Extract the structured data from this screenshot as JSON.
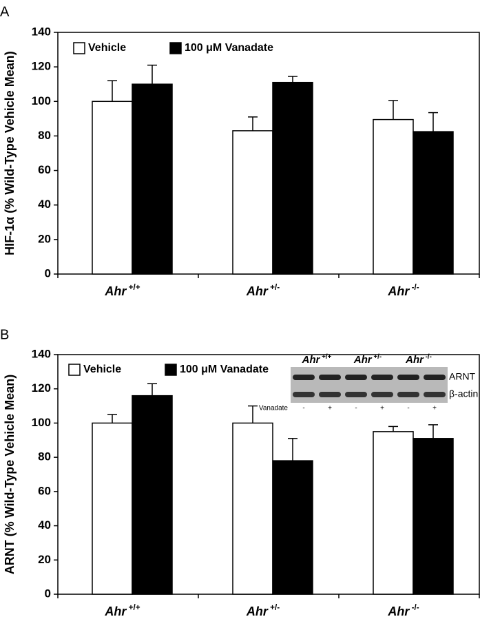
{
  "chart_data": [
    {
      "type": "bar",
      "panel": "A",
      "ylabel": "HIF-1α (% Wild-Type Vehicle Mean)",
      "categories": [
        "Ahr +/+",
        "Ahr +/-",
        "Ahr -/-"
      ],
      "series": [
        {
          "name": "Vehicle",
          "color": "#ffffff",
          "values": [
            100,
            83,
            89.5
          ],
          "errors": [
            12,
            8,
            11
          ]
        },
        {
          "name": "100 μM Vanadate",
          "color": "#000000",
          "values": [
            110,
            111,
            82.5
          ],
          "errors": [
            11,
            3.5,
            11
          ]
        }
      ],
      "ylim": [
        0,
        140
      ],
      "yticks": [
        0,
        20,
        40,
        60,
        80,
        100,
        120,
        140
      ],
      "legend": "upper left"
    },
    {
      "type": "bar",
      "panel": "B",
      "ylabel": "ARNT (% Wild-Type Vehicle Mean)",
      "categories": [
        "Ahr +/+",
        "Ahr +/-",
        "Ahr -/-"
      ],
      "series": [
        {
          "name": "Vehicle",
          "color": "#ffffff",
          "values": [
            100,
            100,
            95
          ],
          "errors": [
            5,
            10,
            3
          ]
        },
        {
          "name": "100 μM Vanadate",
          "color": "#000000",
          "values": [
            116,
            78,
            91
          ],
          "errors": [
            7,
            13,
            8
          ]
        }
      ],
      "ylim": [
        0,
        140
      ],
      "yticks": [
        0,
        20,
        40,
        60,
        80,
        100,
        120,
        140
      ],
      "legend": "upper left",
      "inset": {
        "genotypes": [
          "Ahr +/+",
          "Ahr +/-",
          "Ahr -/-"
        ],
        "bands": [
          "ARNT",
          "β-actin"
        ],
        "treatment": "Vanadate",
        "lanes": [
          "-",
          "+",
          "-",
          "+",
          "-",
          "+"
        ]
      }
    }
  ]
}
